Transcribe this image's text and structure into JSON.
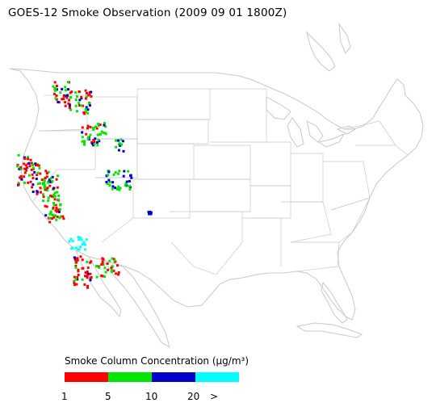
{
  "title": "GOES-12 Smoke Observation (2009 09 01  1800Z)",
  "legend": {
    "title": "Smoke Column Concentration (μg/m³)",
    "bins": [
      {
        "color": "#ff0000"
      },
      {
        "color": "#00e600"
      },
      {
        "color": "#0000cc"
      },
      {
        "color": "#00ffff"
      }
    ],
    "tick_labels": [
      "1",
      "5",
      "10",
      "20",
      ">"
    ]
  },
  "colors": {
    "outline": "#c8c8c8",
    "background": "#ffffff"
  }
}
